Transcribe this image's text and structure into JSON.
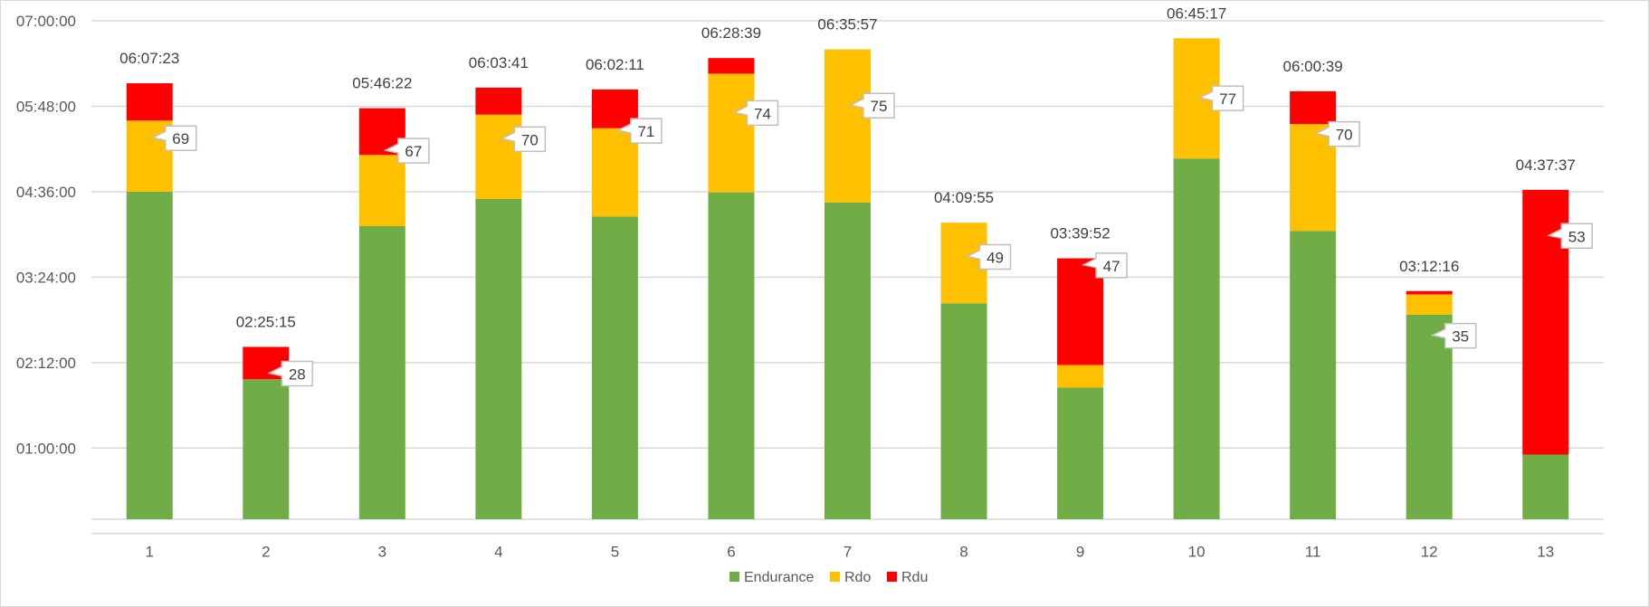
{
  "chart_data": {
    "type": "bar",
    "stacked": true,
    "title": "",
    "xlabel": "",
    "ylabel": "",
    "categories": [
      "1",
      "2",
      "3",
      "4",
      "5",
      "6",
      "7",
      "8",
      "9",
      "10",
      "11",
      "12",
      "13"
    ],
    "y_unit": "minutes",
    "ylim": [
      -12,
      420
    ],
    "y_ticks": [
      {
        "value": 60,
        "label": "01:00:00"
      },
      {
        "value": 132,
        "label": "02:12:00"
      },
      {
        "value": 204,
        "label": "03:24:00"
      },
      {
        "value": 276,
        "label": "04:36:00"
      },
      {
        "value": 348,
        "label": "05:48:00"
      },
      {
        "value": 420,
        "label": "07:00:00"
      }
    ],
    "grid": true,
    "legend_position": "bottom",
    "series": [
      {
        "name": "Endurance",
        "color": "#70ad47",
        "values": [
          276,
          118,
          247,
          270,
          255,
          275.5,
          267,
          182,
          111,
          304,
          243,
          172.5,
          54.5
        ]
      },
      {
        "name": "Rdo",
        "color": "#ffc000",
        "values": [
          60,
          0,
          60,
          71,
          74.5,
          100,
          128.95,
          67.9,
          19,
          101.3,
          90,
          17,
          0
        ]
      },
      {
        "name": "Rdu",
        "color": "#ff0000",
        "values": [
          31.4,
          27.25,
          39.4,
          22.7,
          32.7,
          13.15,
          0,
          0,
          89.9,
          0,
          27.65,
          2.8,
          223.1
        ]
      }
    ],
    "total_labels": [
      "06:07:23",
      "02:25:15",
      "05:46:22",
      "06:03:41",
      "06:02:11",
      "06:28:39",
      "06:35:57",
      "04:09:55",
      "03:39:52",
      "06:45:17",
      "06:00:39",
      "03:12:16",
      "04:37:37"
    ],
    "totals_minutes": [
      367.38,
      145.25,
      346.37,
      363.68,
      362.18,
      388.65,
      395.95,
      249.92,
      219.87,
      405.28,
      360.65,
      192.27,
      277.62
    ],
    "callout_labels": [
      "69",
      "28",
      "67",
      "70",
      "71",
      "74",
      "75",
      "49",
      "47",
      "77",
      "70",
      "35",
      "53"
    ]
  }
}
